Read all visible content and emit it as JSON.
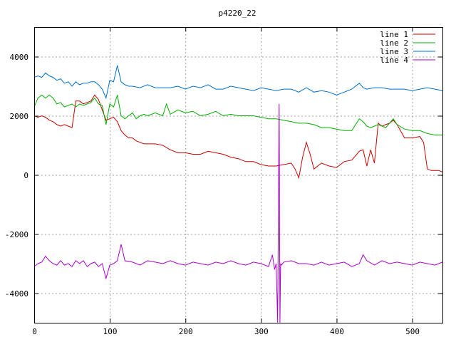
{
  "chart_data": {
    "type": "line",
    "title": "p4220_22",
    "xlabel": "",
    "ylabel": "",
    "xlim": [
      0,
      540
    ],
    "ylim": [
      -5000,
      5000
    ],
    "xticks": [
      0,
      100,
      200,
      300,
      400,
      500
    ],
    "yticks": [
      -4000,
      -2000,
      0,
      2000,
      4000
    ],
    "grid": true,
    "legend_position": "top-right",
    "series": [
      {
        "name": "line 1",
        "color": "#cc0000",
        "x": [
          0,
          5,
          10,
          15,
          20,
          25,
          30,
          35,
          40,
          45,
          50,
          55,
          60,
          65,
          70,
          75,
          80,
          85,
          90,
          95,
          100,
          105,
          110,
          115,
          120,
          125,
          130,
          135,
          140,
          145,
          150,
          160,
          170,
          180,
          190,
          200,
          210,
          220,
          230,
          240,
          250,
          260,
          270,
          280,
          290,
          300,
          310,
          320,
          330,
          340,
          345,
          350,
          355,
          360,
          365,
          370,
          380,
          390,
          400,
          410,
          420,
          430,
          435,
          440,
          445,
          450,
          455,
          460,
          465,
          470,
          475,
          480,
          490,
          500,
          510,
          515,
          520,
          525,
          530,
          535,
          540
        ],
        "y": [
          2000,
          1950,
          2000,
          1950,
          1850,
          1800,
          1700,
          1650,
          1700,
          1650,
          1600,
          2500,
          2500,
          2400,
          2450,
          2500,
          2700,
          2550,
          2200,
          1850,
          1900,
          1950,
          1800,
          1500,
          1350,
          1250,
          1250,
          1150,
          1100,
          1050,
          1050,
          1050,
          1000,
          850,
          750,
          750,
          700,
          700,
          800,
          750,
          700,
          600,
          550,
          450,
          450,
          350,
          300,
          300,
          350,
          400,
          200,
          -100,
          600,
          1100,
          700,
          200,
          400,
          300,
          250,
          450,
          500,
          800,
          850,
          300,
          850,
          400,
          1750,
          1650,
          1700,
          1750,
          1850,
          1700,
          1250,
          1250,
          1300,
          1100,
          200,
          150,
          150,
          150,
          100
        ]
      },
      {
        "name": "line 2",
        "color": "#00b000",
        "x": [
          0,
          5,
          10,
          15,
          20,
          25,
          30,
          35,
          40,
          45,
          50,
          55,
          60,
          65,
          70,
          75,
          80,
          85,
          90,
          95,
          100,
          105,
          110,
          115,
          120,
          125,
          130,
          135,
          140,
          145,
          150,
          160,
          170,
          175,
          180,
          190,
          200,
          210,
          220,
          230,
          240,
          250,
          260,
          270,
          280,
          290,
          300,
          310,
          320,
          330,
          340,
          350,
          360,
          370,
          380,
          390,
          400,
          410,
          420,
          430,
          435,
          440,
          445,
          450,
          455,
          460,
          465,
          470,
          475,
          480,
          490,
          500,
          510,
          520,
          530,
          540
        ],
        "y": [
          2300,
          2600,
          2700,
          2600,
          2700,
          2600,
          2400,
          2450,
          2300,
          2350,
          2400,
          2300,
          2400,
          2350,
          2400,
          2450,
          2600,
          2400,
          2350,
          1700,
          2400,
          2300,
          2700,
          2000,
          1900,
          2000,
          2100,
          1900,
          2000,
          2050,
          2000,
          2100,
          2000,
          2400,
          2050,
          2200,
          2100,
          2150,
          2000,
          2050,
          2150,
          2000,
          2050,
          2000,
          2000,
          2000,
          1950,
          1900,
          1900,
          1850,
          1800,
          1750,
          1750,
          1700,
          1600,
          1600,
          1550,
          1500,
          1500,
          1900,
          1800,
          1650,
          1600,
          1650,
          1700,
          1650,
          1600,
          1750,
          1900,
          1700,
          1550,
          1500,
          1500,
          1400,
          1350,
          1350
        ]
      },
      {
        "name": "line 3",
        "color": "#0070cc",
        "x": [
          0,
          5,
          10,
          15,
          20,
          25,
          30,
          35,
          40,
          45,
          50,
          55,
          60,
          65,
          70,
          75,
          80,
          85,
          90,
          95,
          100,
          105,
          110,
          115,
          120,
          125,
          130,
          140,
          150,
          160,
          170,
          180,
          190,
          200,
          210,
          220,
          230,
          240,
          250,
          260,
          270,
          280,
          290,
          300,
          310,
          320,
          330,
          340,
          350,
          360,
          370,
          380,
          390,
          400,
          410,
          420,
          430,
          435,
          440,
          450,
          460,
          470,
          480,
          490,
          500,
          510,
          520,
          530,
          540
        ],
        "y": [
          3300,
          3350,
          3300,
          3450,
          3350,
          3300,
          3200,
          3250,
          3100,
          3150,
          3000,
          3150,
          3050,
          3100,
          3100,
          3150,
          3150,
          3050,
          2900,
          2600,
          3200,
          3150,
          3700,
          3150,
          3050,
          3000,
          3000,
          2950,
          3050,
          2950,
          2950,
          2950,
          3000,
          2900,
          3000,
          2950,
          3050,
          2900,
          2900,
          3000,
          2950,
          2900,
          2850,
          2950,
          2900,
          2850,
          2900,
          2900,
          2800,
          2950,
          2800,
          2850,
          2800,
          2700,
          2800,
          2900,
          3100,
          2950,
          2900,
          2950,
          2950,
          2900,
          2900,
          2900,
          2850,
          2900,
          2950,
          2900,
          2850
        ]
      },
      {
        "name": "line 4",
        "color": "#aa00cc",
        "x": [
          0,
          5,
          10,
          15,
          20,
          25,
          30,
          35,
          40,
          45,
          50,
          55,
          60,
          65,
          70,
          75,
          80,
          85,
          90,
          95,
          100,
          105,
          110,
          115,
          120,
          130,
          140,
          150,
          160,
          170,
          180,
          190,
          200,
          210,
          220,
          230,
          240,
          250,
          260,
          270,
          280,
          290,
          300,
          310,
          315,
          318,
          320,
          322,
          323,
          324,
          325,
          326,
          327,
          330,
          340,
          350,
          360,
          370,
          380,
          390,
          400,
          410,
          420,
          430,
          435,
          440,
          450,
          460,
          470,
          480,
          490,
          500,
          510,
          520,
          530,
          540
        ],
        "y": [
          -3100,
          -3000,
          -2950,
          -2750,
          -2900,
          -3000,
          -3050,
          -2900,
          -3050,
          -3000,
          -3100,
          -2900,
          -3000,
          -2900,
          -3100,
          -3000,
          -2950,
          -3100,
          -3000,
          -3500,
          -3050,
          -3000,
          -2900,
          -2350,
          -2900,
          -2950,
          -3050,
          -2900,
          -2950,
          -3000,
          -2900,
          -3000,
          -3050,
          -2950,
          -3000,
          -3050,
          -2950,
          -3000,
          -2900,
          -3000,
          -3050,
          -2950,
          -3000,
          -3100,
          -2700,
          -3200,
          -3000,
          -5000,
          -1300,
          2400,
          -5000,
          -3000,
          -3050,
          -2950,
          -2900,
          -3000,
          -3000,
          -3050,
          -2950,
          -3050,
          -3000,
          -2950,
          -3100,
          -3000,
          -2700,
          -2900,
          -3050,
          -2900,
          -3000,
          -2950,
          -3000,
          -3050,
          -2950,
          -3000,
          -3050,
          -2950
        ]
      }
    ]
  }
}
